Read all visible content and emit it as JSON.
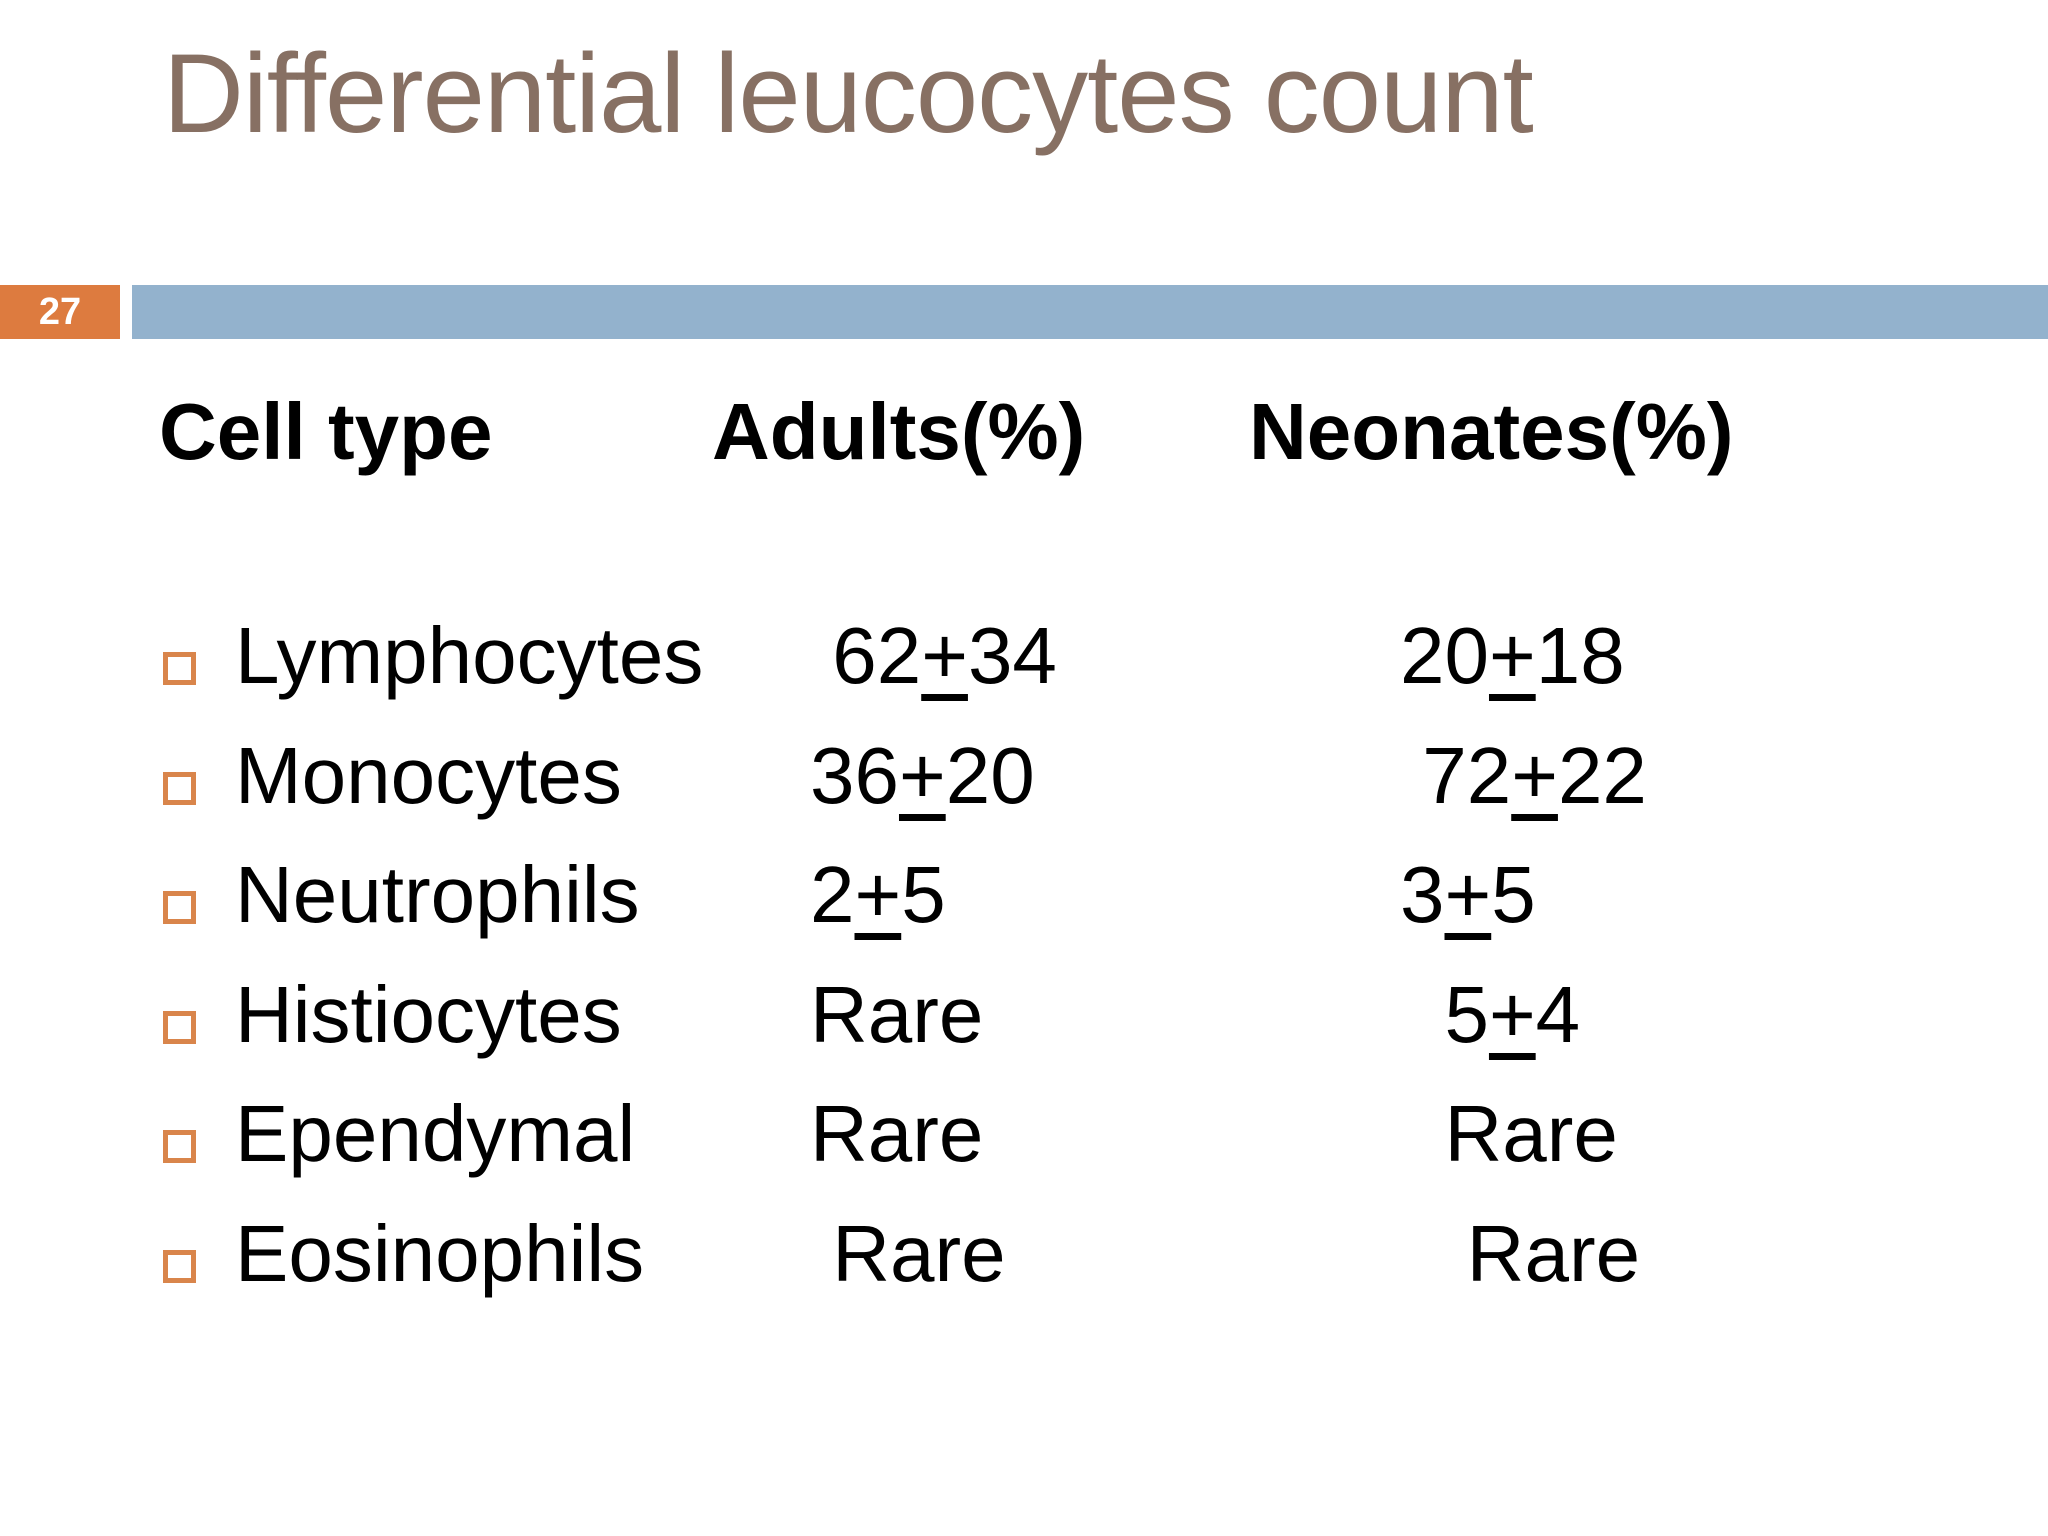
{
  "slide": {
    "title": "Differential leucocytes count",
    "slide_number": "27",
    "colors": {
      "title_brown": "#877063",
      "accent_orange": "#DD7B3F",
      "bar_blue": "#93B2CD",
      "bullet_orange": "#D9854B",
      "text_black": "#000000"
    }
  },
  "table": {
    "headers": [
      "Cell type",
      "Adults(%)",
      "Neonates(%)"
    ],
    "rows": [
      {
        "cell_type": "Lymphocytes",
        "adults": " 62+34",
        "neonates": "20+18"
      },
      {
        "cell_type": "Monocytes",
        "adults": "36+20",
        "neonates": " 72+22"
      },
      {
        "cell_type": "Neutrophils",
        "adults": "2+5",
        "neonates": "3+5"
      },
      {
        "cell_type": "Histiocytes",
        "adults": "Rare",
        "neonates": "  5+4"
      },
      {
        "cell_type": "Ependymal",
        "adults": "Rare",
        "neonates": "  Rare"
      },
      {
        "cell_type": "Eosinophils",
        "adults": " Rare",
        "neonates": "   Rare"
      }
    ]
  }
}
